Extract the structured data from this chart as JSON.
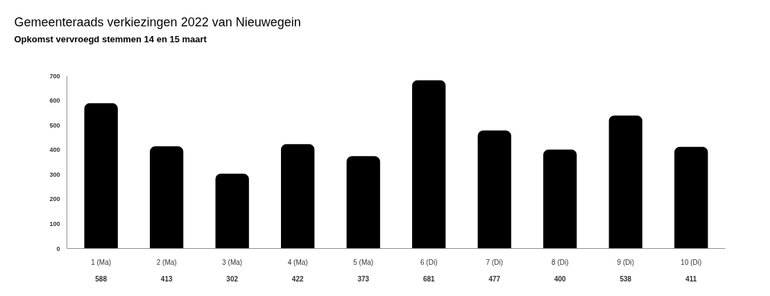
{
  "chart_data": {
    "type": "bar",
    "title": "Gemeenteraads verkiezingen 2022 van Nieuwegein",
    "subtitle": "Opkomst vervroegd stemmen 14 en 15 maart",
    "categories": [
      "1 (Ma)",
      "2 (Ma)",
      "3 (Ma)",
      "4 (Ma)",
      "5 (Ma)",
      "6 (Di)",
      "7 (Di)",
      "8 (Di)",
      "9 (Di)",
      "10 (Di)"
    ],
    "values": [
      588,
      413,
      302,
      422,
      373,
      681,
      477,
      400,
      538,
      411
    ],
    "color": "#000000",
    "ylim": [
      0,
      700
    ],
    "yticks": [
      0,
      100,
      200,
      300,
      400,
      500,
      600,
      700
    ],
    "grid": false,
    "data_labels": true
  }
}
